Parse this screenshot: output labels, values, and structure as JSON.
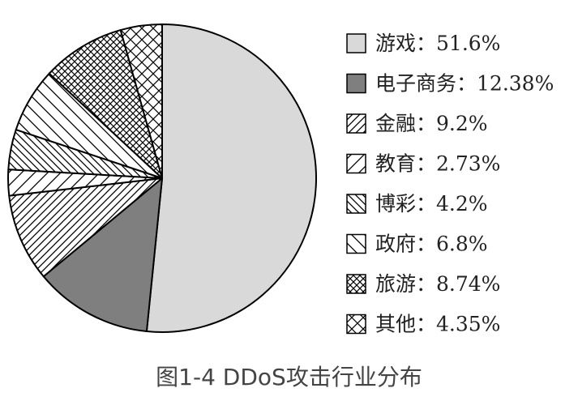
{
  "chart_data": {
    "type": "pie",
    "title": "图1-4 DDoS攻击行业分布",
    "legend_position": "right",
    "slices": [
      {
        "label": "游戏",
        "value": 51.6,
        "display": "51.6%",
        "fill": "solid",
        "color": "#d9d9d9"
      },
      {
        "label": "电子商务",
        "value": 12.38,
        "display": "12.38%",
        "fill": "solid",
        "color": "#7f7f7f"
      },
      {
        "label": "金融",
        "value": 9.2,
        "display": "9.2%",
        "fill": "hatch-forward-dense",
        "color": "#000000"
      },
      {
        "label": "教育",
        "value": 2.73,
        "display": "2.73%",
        "fill": "hatch-forward-sparse",
        "color": "#000000"
      },
      {
        "label": "博彩",
        "value": 4.2,
        "display": "4.2%",
        "fill": "hatch-back-dense",
        "color": "#000000"
      },
      {
        "label": "政府",
        "value": 6.8,
        "display": "6.8%",
        "fill": "hatch-back-sparse",
        "color": "#000000"
      },
      {
        "label": "旅游",
        "value": 8.74,
        "display": "8.74%",
        "fill": "crosshatch-dense",
        "color": "#000000"
      },
      {
        "label": "其他",
        "value": 4.35,
        "display": "4.35%",
        "fill": "crosshatch-sparse",
        "color": "#000000"
      }
    ]
  }
}
